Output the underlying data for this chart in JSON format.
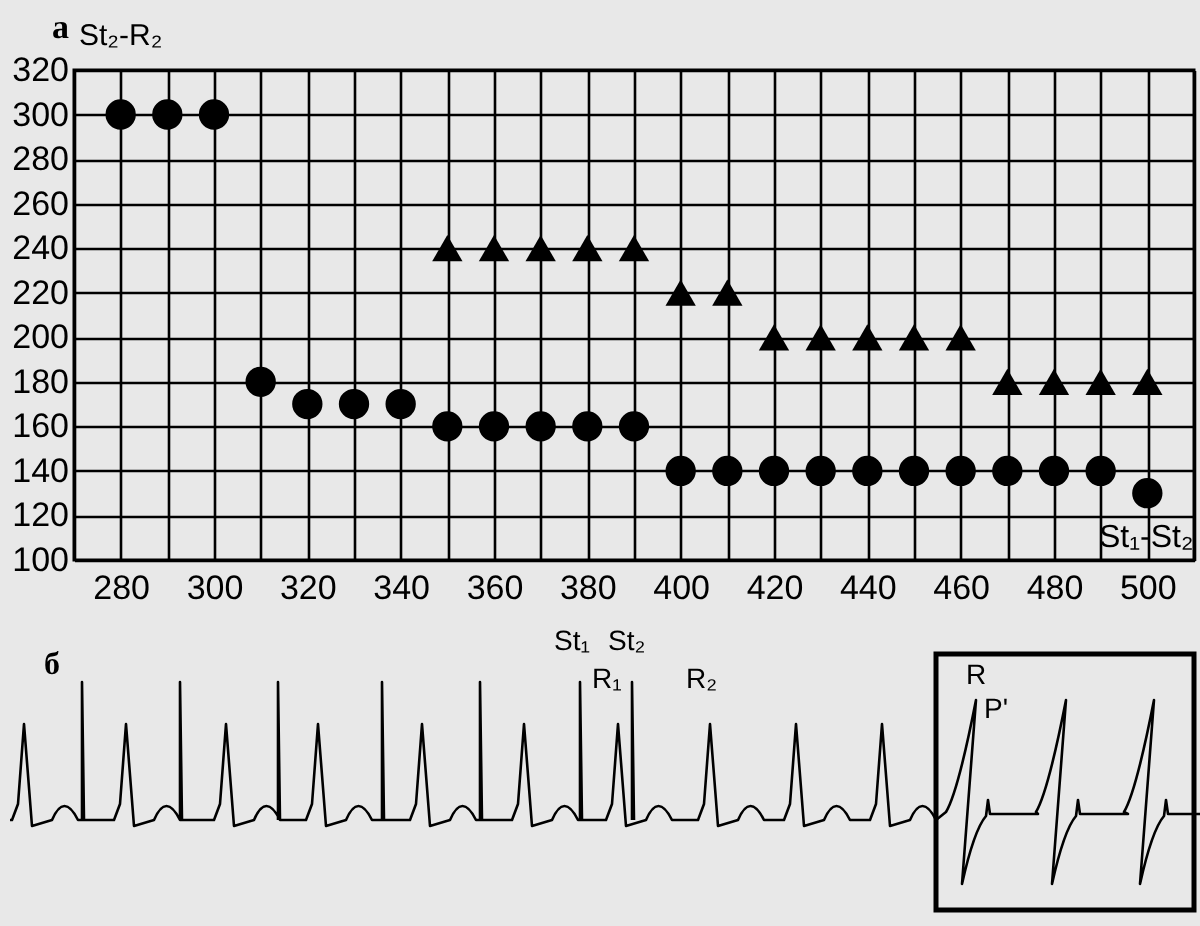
{
  "chart_data": [
    {
      "type": "scatter",
      "xlabel": "St₁-St₂",
      "ylabel": "St₂-R₂",
      "annotations": [
        "а"
      ],
      "xlim": [
        270,
        510
      ],
      "ylim": [
        100,
        320
      ],
      "xticks": [
        {
          "value": 270,
          "label": null
        },
        280,
        {
          "value": 290,
          "label": null
        },
        300,
        {
          "value": 310,
          "label": null
        },
        320,
        {
          "value": 330,
          "label": null
        },
        340,
        {
          "value": 350,
          "label": null
        },
        360,
        {
          "value": 370,
          "label": null
        },
        380,
        {
          "value": 390,
          "label": null
        },
        400,
        {
          "value": 410,
          "label": null
        },
        420,
        {
          "value": 430,
          "label": null
        },
        440,
        {
          "value": 450,
          "label": null
        },
        460,
        {
          "value": 470,
          "label": null
        },
        480,
        {
          "value": 490,
          "label": null
        },
        500,
        {
          "value": 510,
          "label": null
        }
      ],
      "yticks": [
        100,
        120,
        140,
        160,
        180,
        200,
        220,
        240,
        260,
        280,
        300,
        320
      ],
      "grid": true,
      "series": [
        {
          "color": "#000000",
          "marker": "circle",
          "x": [
            280,
            290,
            300,
            310,
            320,
            330,
            340,
            350,
            360,
            370,
            380,
            390,
            400,
            410,
            420,
            430,
            440,
            450,
            460,
            470,
            480,
            490,
            500
          ],
          "values": [
            300,
            300,
            300,
            180,
            170,
            170,
            170,
            160,
            160,
            160,
            160,
            160,
            140,
            140,
            140,
            140,
            140,
            140,
            140,
            140,
            140,
            140,
            130
          ]
        },
        {
          "color": "#000000",
          "marker": "triangle",
          "x": [
            350,
            360,
            370,
            380,
            390,
            400,
            410,
            420,
            430,
            440,
            450,
            460,
            470,
            480,
            490,
            500
          ],
          "values": [
            240,
            240,
            240,
            240,
            240,
            220,
            220,
            200,
            200,
            200,
            200,
            200,
            180,
            180,
            180,
            180
          ]
        }
      ]
    },
    {
      "type": "other",
      "annotations": [
        "б",
        "St₁",
        "St₂",
        "R₁",
        "R₂",
        "R",
        "P'"
      ]
    }
  ]
}
